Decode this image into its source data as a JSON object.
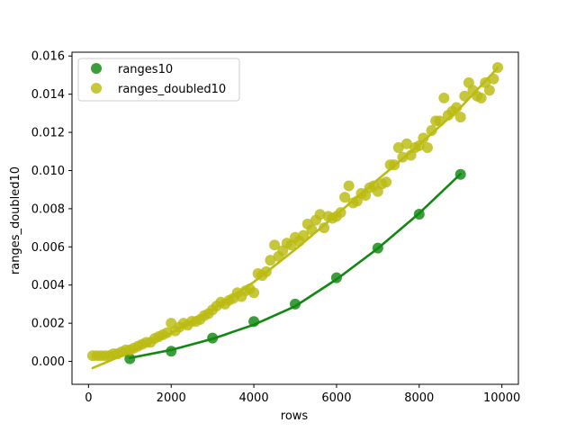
{
  "chart_data": {
    "type": "scatter",
    "title": "",
    "xlabel": "rows",
    "ylabel": "ranges_doubled10",
    "xlim": [
      -400,
      10400
    ],
    "ylim": [
      -0.0012,
      0.0162
    ],
    "xticks": [
      0,
      2000,
      4000,
      6000,
      8000,
      10000
    ],
    "xtick_labels": [
      "0",
      "2000",
      "4000",
      "6000",
      "8000",
      "10000"
    ],
    "yticks": [
      0.0,
      0.002,
      0.004,
      0.006,
      0.008,
      0.01,
      0.012,
      0.014,
      0.016
    ],
    "ytick_labels": [
      "0.000",
      "0.002",
      "0.004",
      "0.006",
      "0.008",
      "0.010",
      "0.012",
      "0.014",
      "0.016"
    ],
    "grid": false,
    "legend_position": "upper-left",
    "series": [
      {
        "name": "ranges10",
        "color": "#118811",
        "x": [
          1000,
          2000,
          3000,
          4000,
          5000,
          6000,
          7000,
          8000,
          9000
        ],
        "y": [
          0.00014,
          0.00053,
          0.00122,
          0.00209,
          0.003,
          0.00438,
          0.00594,
          0.00771,
          0.0098
        ],
        "fit_line": {
          "x": [
            1000,
            2000,
            3000,
            4000,
            5000,
            6000,
            7000,
            8000,
            9000
          ],
          "y": [
            0.00018,
            0.0006,
            0.00118,
            0.00192,
            0.00289,
            0.0043,
            0.00592,
            0.00776,
            0.00982
          ]
        }
      },
      {
        "name": "ranges_doubled10",
        "color": "#BBBB11",
        "x": [
          100,
          200,
          300,
          400,
          500,
          600,
          700,
          800,
          900,
          1000,
          1100,
          1200,
          1300,
          1400,
          1500,
          1600,
          1700,
          1800,
          1900,
          2000,
          2100,
          2200,
          2300,
          2400,
          2500,
          2600,
          2700,
          2800,
          2900,
          3000,
          3100,
          3200,
          3300,
          3400,
          3500,
          3600,
          3700,
          3800,
          3900,
          4000,
          4100,
          4200,
          4300,
          4400,
          4500,
          4600,
          4700,
          4800,
          4900,
          5000,
          5100,
          5200,
          5300,
          5400,
          5500,
          5600,
          5700,
          5800,
          5900,
          6000,
          6100,
          6200,
          6300,
          6400,
          6500,
          6600,
          6700,
          6800,
          6900,
          7000,
          7100,
          7200,
          7300,
          7400,
          7500,
          7600,
          7700,
          7800,
          7900,
          8000,
          8100,
          8200,
          8300,
          8400,
          8500,
          8600,
          8700,
          8800,
          8900,
          9000,
          9100,
          9200,
          9300,
          9400,
          9500,
          9600,
          9700,
          9800,
          9900
        ],
        "y": [
          0.0003,
          0.0003,
          0.0003,
          0.0003,
          0.0003,
          0.0004,
          0.0004,
          0.0005,
          0.0006,
          0.0006,
          0.0007,
          0.0008,
          0.0009,
          0.001,
          0.001,
          0.0012,
          0.0013,
          0.0014,
          0.0015,
          0.002,
          0.0016,
          0.0018,
          0.002,
          0.0019,
          0.0021,
          0.0021,
          0.0022,
          0.0024,
          0.0025,
          0.0027,
          0.0029,
          0.0031,
          0.003,
          0.0032,
          0.0033,
          0.0036,
          0.0034,
          0.0037,
          0.0038,
          0.0036,
          0.0046,
          0.0045,
          0.0047,
          0.0053,
          0.0061,
          0.0055,
          0.0058,
          0.0062,
          0.0061,
          0.0065,
          0.0063,
          0.0066,
          0.0072,
          0.0069,
          0.0074,
          0.0077,
          0.007,
          0.0076,
          0.0075,
          0.0076,
          0.0078,
          0.0086,
          0.0092,
          0.0083,
          0.0084,
          0.0088,
          0.0087,
          0.0091,
          0.0092,
          0.0089,
          0.0093,
          0.0094,
          0.0103,
          0.0103,
          0.0112,
          0.0107,
          0.0114,
          0.0108,
          0.0112,
          0.0113,
          0.0117,
          0.0112,
          0.0121,
          0.0126,
          0.0126,
          0.0138,
          0.0129,
          0.0131,
          0.0133,
          0.0128,
          0.0139,
          0.0146,
          0.0142,
          0.0139,
          0.0138,
          0.0146,
          0.0142,
          0.0148,
          0.0154
        ],
        "fit_line": {
          "x": [
            100,
            1000,
            2000,
            3000,
            4000,
            5000,
            6000,
            7000,
            8000,
            9000,
            9900
          ],
          "y": [
            -0.00035,
            0.00048,
            0.00148,
            0.00272,
            0.00416,
            0.00586,
            0.00769,
            0.00953,
            0.01135,
            0.0133,
            0.01538
          ]
        }
      }
    ]
  }
}
